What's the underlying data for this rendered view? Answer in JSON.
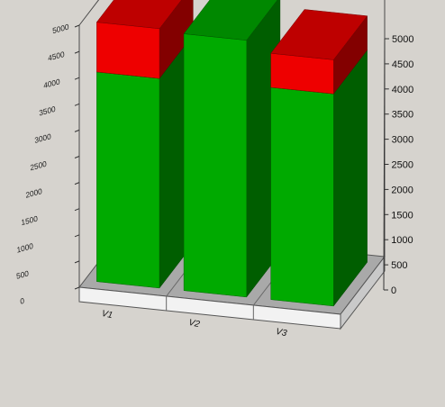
{
  "chart_data": {
    "type": "bar",
    "stacked": true,
    "three_d": true,
    "categories": [
      "V1",
      "V2",
      "V3"
    ],
    "series": [
      {
        "values": [
          4000,
          4900,
          4050
        ],
        "color": "#00aa00"
      },
      {
        "values": [
          950,
          0,
          650
        ],
        "color": "#ee0000"
      }
    ],
    "ylim": [
      0,
      5000
    ],
    "yticks": [
      "0",
      "500",
      "1000",
      "1500",
      "2000",
      "2500",
      "3000",
      "3500",
      "4000",
      "4500",
      "5000"
    ],
    "grid": false,
    "legend": "none"
  }
}
